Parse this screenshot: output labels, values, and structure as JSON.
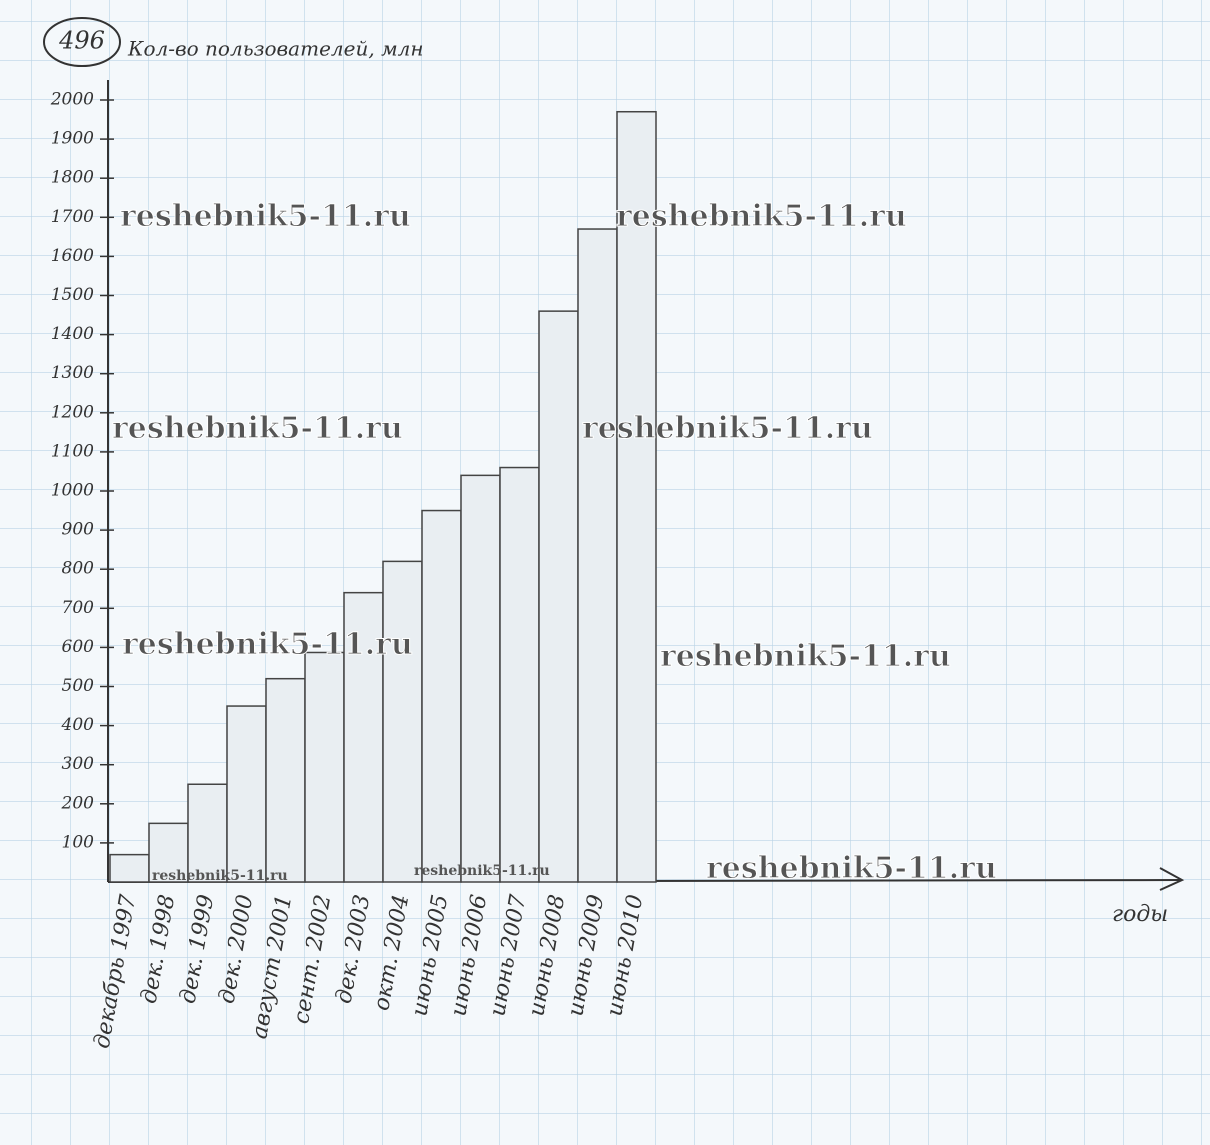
{
  "chart_data": {
    "type": "bar",
    "number": "496",
    "y_label": "Кол-во пользователей, млн",
    "x_label": "годы",
    "categories": [
      "декабрь 1997",
      "дек. 1998",
      "дек. 1999",
      "дек. 2000",
      "август 2001",
      "сент. 2002",
      "дек. 2003",
      "окт. 2004",
      "июнь 2005",
      "июнь 2006",
      "июнь 2007",
      "июнь 2008",
      "июнь 2009",
      "июнь 2010"
    ],
    "values": [
      70,
      150,
      250,
      450,
      520,
      587,
      740,
      820,
      950,
      1040,
      1060,
      1460,
      1670,
      1970
    ],
    "color": "#e9eef2",
    "ylim": [
      0,
      2000
    ],
    "yticks": [
      100,
      200,
      300,
      400,
      500,
      600,
      700,
      800,
      900,
      1000,
      1100,
      1200,
      1300,
      1400,
      1500,
      1600,
      1700,
      1800,
      1900,
      2000
    ],
    "watermarks": [
      "reshebnik5-11.ru",
      "reshebnik5-11.ru",
      "reshebnik5-11.ru",
      "reshebnik5-11.ru",
      "reshebnik5-11.ru",
      "reshebnik5-11.ru",
      "reshebnik5-11.ru",
      "reshebnik5-11.ru",
      "reshebnik5-11.ru"
    ]
  }
}
